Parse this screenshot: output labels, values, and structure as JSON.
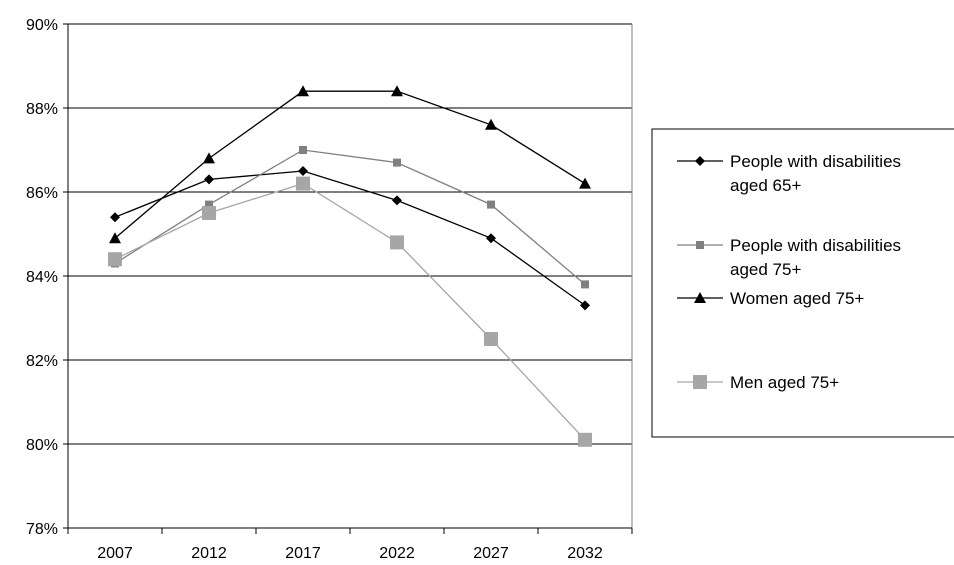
{
  "chart_data": {
    "type": "line",
    "title": "",
    "xlabel": "",
    "ylabel": "",
    "categories": [
      "2007",
      "2012",
      "2017",
      "2022",
      "2027",
      "2032"
    ],
    "ylim": [
      78,
      90
    ],
    "yticks": [
      78,
      80,
      82,
      84,
      86,
      88,
      90
    ],
    "ytick_labels": [
      "78%",
      "80%",
      "82%",
      "84%",
      "86%",
      "88%",
      "90%"
    ],
    "grid": "horizontal",
    "legend_position": "right",
    "series": [
      {
        "name": "People with disabilities aged 65+",
        "legend_lines": [
          "People with disabilities",
          "aged 65+"
        ],
        "values": [
          85.4,
          86.3,
          86.5,
          85.8,
          84.9,
          83.3
        ],
        "color": "#000000",
        "marker": "diamond"
      },
      {
        "name": "People with disabilities aged 75+",
        "legend_lines": [
          "People with disabilities",
          "aged 75+"
        ],
        "values": [
          84.3,
          85.7,
          87.0,
          86.7,
          85.7,
          83.8
        ],
        "color": "#808080",
        "marker": "square-small"
      },
      {
        "name": "Women aged 75+",
        "legend_lines": [
          "Women aged 75+"
        ],
        "values": [
          84.9,
          86.8,
          88.4,
          88.4,
          87.6,
          86.2
        ],
        "color": "#000000",
        "marker": "triangle"
      },
      {
        "name": "Men aged 75+",
        "legend_lines": [
          "Men aged 75+"
        ],
        "values": [
          84.4,
          85.5,
          86.2,
          84.8,
          82.5,
          80.1
        ],
        "color": "#a6a6a6",
        "marker": "square-large"
      }
    ]
  }
}
